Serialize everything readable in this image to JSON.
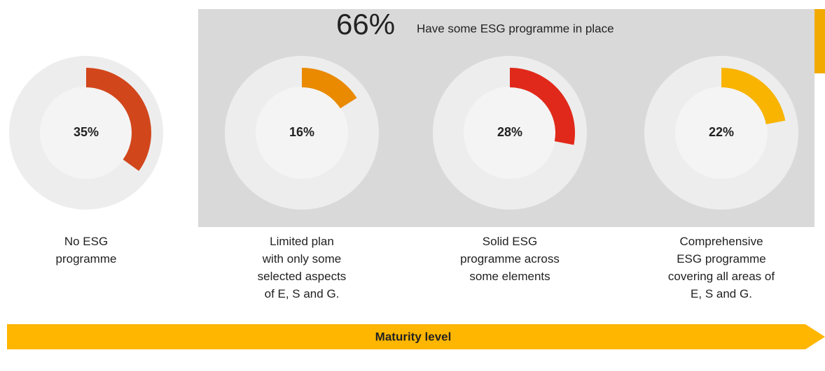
{
  "chart_data": {
    "type": "donut",
    "categories": [
      "No ESG\nprogramme",
      "Limited plan\nwith only some\nselected aspects\nof E, S and G.",
      "Solid ESG\nprogramme across\nsome elements",
      "Comprehensive\nESG programme\ncovering all areas of\nE, S and G."
    ],
    "values": [
      35,
      16,
      28,
      22
    ],
    "value_labels": [
      "35%",
      "16%",
      "28%",
      "22%"
    ],
    "colors": [
      "#d2461c",
      "#e98a00",
      "#e0291a",
      "#f8b400"
    ],
    "annotation": {
      "value": 66,
      "label": "66%",
      "text": "Have some ESG programme in place"
    },
    "axis_label": "Maturity level"
  }
}
